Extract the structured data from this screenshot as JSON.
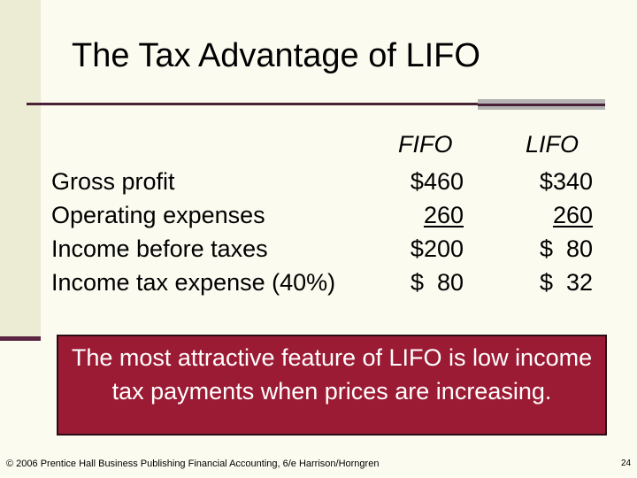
{
  "slide": {
    "title": "The Tax Advantage of LIFO",
    "table": {
      "headers": [
        "FIFO",
        "LIFO"
      ],
      "rows": [
        {
          "label": "Gross profit",
          "fifo": "$460",
          "lifo": "$340"
        },
        {
          "label": "Operating expenses",
          "fifo": "260",
          "lifo": "260"
        },
        {
          "label": "Income before taxes",
          "fifo": "$200",
          "lifo": "$  80"
        },
        {
          "label": "Income tax expense (40%)",
          "fifo": "$  80",
          "lifo": "$  32"
        }
      ]
    },
    "callout": "The most attractive feature of LIFO is low income tax payments when prices are increasing.",
    "footer": "© 2006 Prentice Hall Business Publishing Financial Accounting, 6/e Harrison/Horngren",
    "page_number": "24"
  },
  "colors": {
    "background": "#fbfbf0",
    "left_band": "#ecebd3",
    "accent_dark": "#4a2238",
    "callout_fill": "#9c1b34",
    "rule_grey": "#b3b3b3"
  }
}
